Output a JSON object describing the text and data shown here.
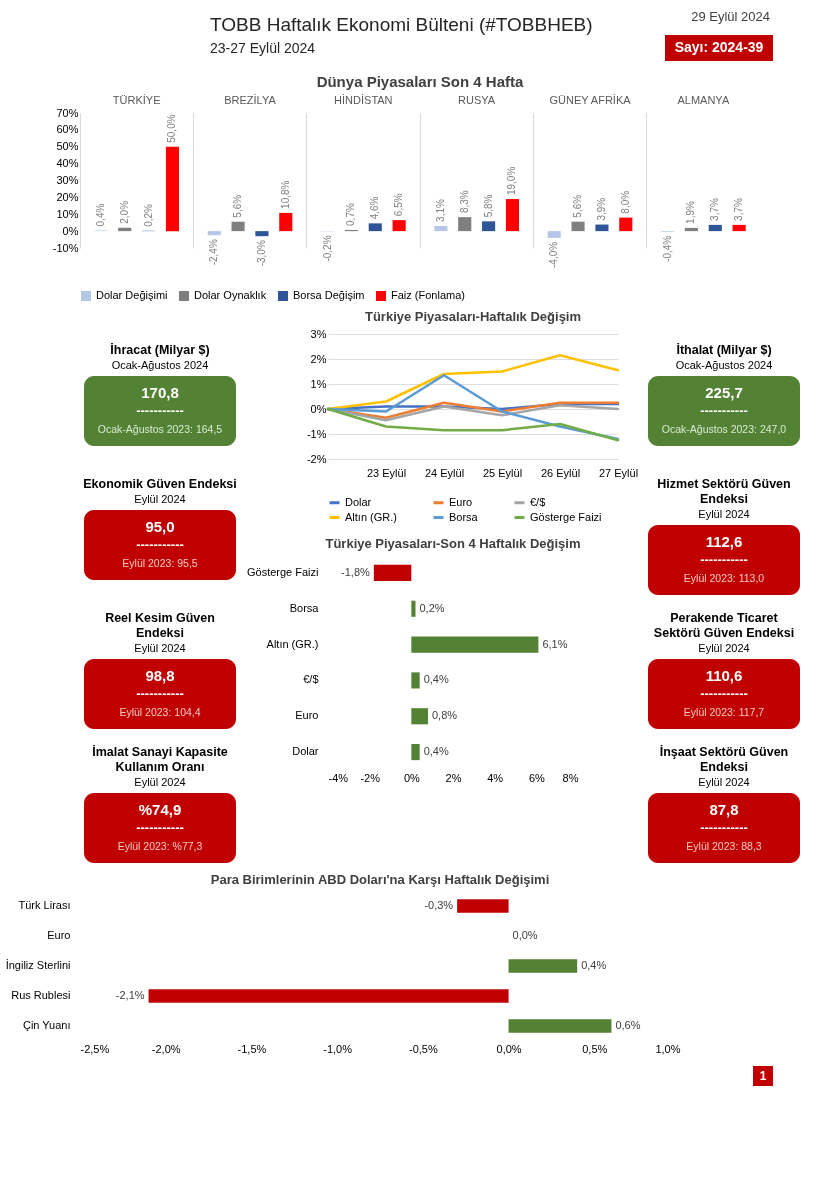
{
  "chart_data": [
    {
      "type": "other",
      "title": "TOBB Haftalık Ekonomi Bülteni (#TOBBHEB)",
      "subtitle": "23-27 Eylül 2024",
      "annotations": [
        "29 Eylül 2024",
        "Sayı: 2024-39",
        "1"
      ]
    },
    {
      "type": "bar",
      "title": "Dünya Piyasaları Son 4 Hafta",
      "categories": [
        "TÜRKİYE",
        "BREZİLYA",
        "HİNDİSTAN",
        "RUSYA",
        "GÜNEY AFRİKA",
        "ALMANYA"
      ],
      "ylim": [
        -10,
        70
      ],
      "yticks": [
        {
          "value": -10,
          "label": "-10%"
        },
        {
          "value": 0,
          "label": "0%"
        },
        {
          "value": 10,
          "label": "10%"
        },
        {
          "value": 20,
          "label": "20%"
        },
        {
          "value": 30,
          "label": "30%"
        },
        {
          "value": 40,
          "label": "40%"
        },
        {
          "value": 50,
          "label": "50%"
        },
        {
          "value": 60,
          "label": "60%"
        },
        {
          "value": 70,
          "label": "70%"
        }
      ],
      "grid": "x",
      "legend": "bottom",
      "series": [
        {
          "name": "Dolar Değişimi",
          "color": "#b4c7e7",
          "values": [
            0.4,
            -2.4,
            -0.2,
            3.1,
            -4.0,
            -0.4
          ],
          "value_labels": [
            "0,4%",
            "-2,4%",
            "-0,2%",
            "3,1%",
            "-4,0%",
            "-0,4%"
          ]
        },
        {
          "name": "Dolar Oynaklık",
          "color": "#7f7f7f",
          "values": [
            2.0,
            5.6,
            0.7,
            8.3,
            5.6,
            1.9
          ],
          "value_labels": [
            "2,0%",
            "5,6%",
            "0,7%",
            "8,3%",
            "5,6%",
            "1,9%"
          ]
        },
        {
          "name": "Borsa Değişim",
          "color": "#2f5597",
          "values": [
            0.2,
            -3.0,
            4.6,
            5.8,
            3.9,
            3.7
          ],
          "value_labels": [
            "0,2%",
            "-3,0%",
            "4,6%",
            "5,8%",
            "3,9%",
            "3,7%"
          ]
        },
        {
          "name": "Faiz (Fonlama)",
          "color": "#ff0000",
          "values": [
            50.0,
            10.8,
            6.5,
            19.0,
            8.0,
            3.7
          ],
          "value_labels": [
            "50,0%",
            "10,8%",
            "6,5%",
            "19,0%",
            "8,0%",
            "3,7%"
          ]
        }
      ]
    },
    {
      "type": "other",
      "title": "İhracat (Milyar $)",
      "subtitle": "Ocak-Ağustos 2024",
      "annotations": [
        "170,8",
        "-----------",
        "Ocak-Ağustos 2023: 164,5"
      ],
      "color": "#548235"
    },
    {
      "type": "line",
      "title": "Türkiye Piyasaları-Haftalık Değişim",
      "categories": [
        null,
        "23 Eylül",
        "24 Eylül",
        "25 Eylül",
        "26 Eylül",
        "27 Eylül"
      ],
      "ylim": [
        -2,
        3
      ],
      "yticks": [
        {
          "value": -2,
          "label": "-2%"
        },
        {
          "value": -1,
          "label": "-1%"
        },
        {
          "value": 0,
          "label": "0%"
        },
        {
          "value": 1,
          "label": "1%"
        },
        {
          "value": 2,
          "label": "2%"
        },
        {
          "value": 3,
          "label": "3%"
        }
      ],
      "grid": "y",
      "legend": "bottom",
      "series": [
        {
          "name": "Dolar",
          "color": "#4472c4",
          "values": [
            0,
            0.1,
            0.1,
            0.0,
            0.2,
            0.2
          ]
        },
        {
          "name": "Euro",
          "color": "#ed7d31",
          "values": [
            0,
            -0.35,
            0.25,
            -0.1,
            0.25,
            0.25
          ]
        },
        {
          "name": "€/$",
          "color": "#a5a5a5",
          "values": [
            0,
            -0.45,
            0.1,
            -0.25,
            0.15,
            0.0
          ]
        },
        {
          "name": "Altın (GR.)",
          "color": "#ffc000",
          "values": [
            0,
            0.3,
            1.4,
            1.5,
            2.15,
            1.55
          ]
        },
        {
          "name": "Borsa",
          "color": "#5b9bd5",
          "values": [
            0,
            -0.1,
            1.35,
            -0.1,
            -0.7,
            -1.2
          ]
        },
        {
          "name": "Gösterge Faizi",
          "color": "#70ad47",
          "values": [
            0,
            -0.7,
            -0.85,
            -0.85,
            -0.6,
            -1.25
          ]
        }
      ]
    },
    {
      "type": "other",
      "title": "İthalat (Milyar $)",
      "subtitle": "Ocak-Ağustos 2024",
      "annotations": [
        "225,7",
        "-----------",
        "Ocak-Ağustos 2023: 247,0"
      ],
      "color": "#548235"
    },
    {
      "type": "other",
      "title": "Ekonomik Güven Endeksi",
      "subtitle": "Eylül 2024",
      "annotations": [
        "95,0",
        "-----------",
        "Eylül 2023: 95,5"
      ],
      "color": "#c00000"
    },
    {
      "type": "other",
      "title": "Hizmet Sektörü Güven Endeksi",
      "subtitle": "Eylül 2024",
      "annotations": [
        "112,6",
        "-----------",
        "Eylül 2023: 113,0"
      ],
      "color": "#c00000"
    },
    {
      "type": "other",
      "title": "Reel Kesim Güven Endeksi",
      "subtitle": "Eylül 2024",
      "annotations": [
        "98,8",
        "-----------",
        "Eylül 2023: 104,4"
      ],
      "color": "#c00000"
    },
    {
      "type": "bar",
      "orientation": "horizontal",
      "title": "Türkiye Piyasaları-Son 4 Haftalık Değişim",
      "categories": [
        "Gösterge Faizi",
        "Borsa",
        "Altın (GR.)",
        "€/$",
        "Euro",
        "Dolar"
      ],
      "values": [
        -1.8,
        0.2,
        6.1,
        0.4,
        0.8,
        0.4
      ],
      "colors": [
        "#c00000",
        "#548235",
        "#548235",
        "#548235",
        "#548235",
        "#548235"
      ],
      "value_labels": [
        "-1,8%",
        "0,2%",
        "6,1%",
        "0,4%",
        "0,8%",
        "0,4%"
      ],
      "xlim": [
        -4,
        8
      ],
      "xticks": [
        {
          "value": -4,
          "label": "-4%"
        },
        {
          "value": -2,
          "label": "-2%"
        },
        {
          "value": 0,
          "label": "0%"
        },
        {
          "value": 2,
          "label": "2%"
        },
        {
          "value": 4,
          "label": "4%"
        },
        {
          "value": 6,
          "label": "6%"
        },
        {
          "value": 8,
          "label": "8%"
        }
      ]
    },
    {
      "type": "other",
      "title": "Perakende Ticaret Sektörü Güven Endeksi",
      "subtitle": "Eylül 2024",
      "annotations": [
        "110,6",
        "-----------",
        "Eylül 2023: 117,7"
      ],
      "color": "#c00000"
    },
    {
      "type": "other",
      "title": "İmalat Sanayi Kapasite Kullanım Oranı",
      "subtitle": "Eylül 2024",
      "annotations": [
        "%74,9",
        "-----------",
        "Eylül 2023: %77,3"
      ],
      "color": "#c00000"
    },
    {
      "type": "other",
      "title": "İnşaat Sektörü Güven Endeksi",
      "subtitle": "Eylül 2024",
      "annotations": [
        "87,8",
        "-----------",
        "Eylül 2023: 88,3"
      ],
      "color": "#c00000"
    },
    {
      "type": "bar",
      "orientation": "horizontal",
      "title": "Para Birimlerinin ABD Doları'na Karşı Haftalık Değişimi",
      "categories": [
        "Türk Lirası",
        "Euro",
        "İngiliz Sterlini",
        "Rus Rublesi",
        "Çin Yuanı"
      ],
      "values": [
        -0.3,
        0.0,
        0.4,
        -2.1,
        0.6
      ],
      "colors": [
        "#c00000",
        "#548235",
        "#548235",
        "#c00000",
        "#548235"
      ],
      "value_labels": [
        "-0,3%",
        "0,0%",
        "0,4%",
        "-2,1%",
        "0,6%"
      ],
      "xlim": [
        -2.5,
        1.0
      ],
      "xticks": [
        {
          "value": -2.5,
          "label": "-2,5%"
        },
        {
          "value": -2.0,
          "label": "-2,0%"
        },
        {
          "value": -1.5,
          "label": "-1,5%"
        },
        {
          "value": -1.0,
          "label": "-1,0%"
        },
        {
          "value": -0.5,
          "label": "-0,5%"
        },
        {
          "value": 0.0,
          "label": "0,0%"
        },
        {
          "value": 0.5,
          "label": "0,5%"
        },
        {
          "value": 1.0,
          "label": "1,0%"
        }
      ]
    }
  ]
}
